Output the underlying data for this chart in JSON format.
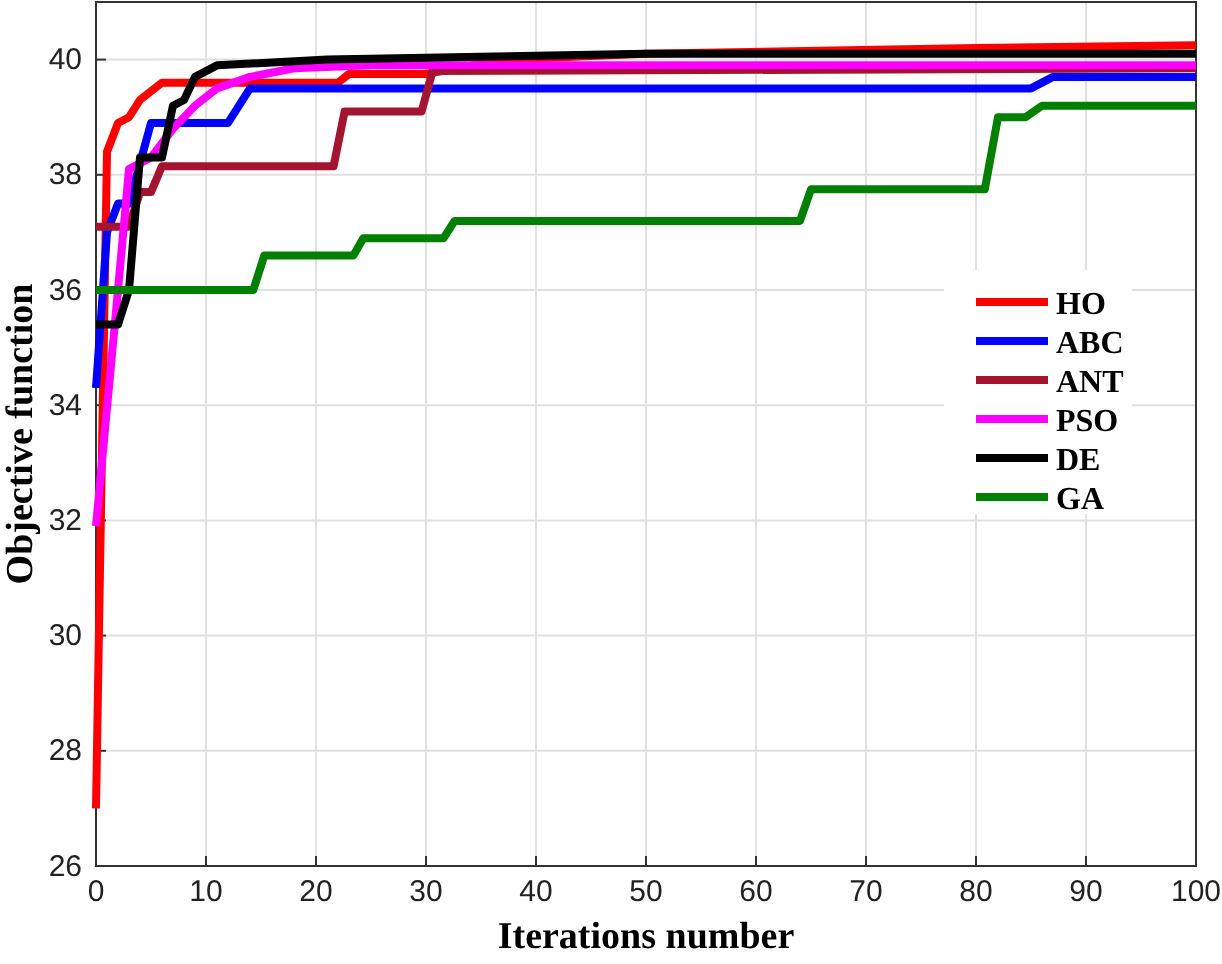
{
  "chart_data": {
    "type": "line",
    "xlabel": "Iterations number",
    "ylabel": "Objective function",
    "xlim": [
      0,
      100
    ],
    "ylim": [
      26,
      41
    ],
    "xticks": [
      0,
      10,
      20,
      30,
      40,
      50,
      60,
      70,
      80,
      90,
      100
    ],
    "yticks": [
      26,
      28,
      30,
      32,
      34,
      36,
      38,
      40
    ],
    "grid": true,
    "legend": "right",
    "marker": "none",
    "line_style": "solid",
    "series": [
      {
        "name": "HO",
        "color": "#ff0000",
        "x": [
          0,
          1,
          2,
          3,
          4,
          6,
          22,
          23,
          30,
          37,
          50,
          80,
          100
        ],
        "values": [
          27,
          38.4,
          38.9,
          39,
          39.3,
          39.6,
          39.6,
          39.75,
          39.75,
          40,
          40.1,
          40.2,
          40.25
        ]
      },
      {
        "name": "ABC",
        "color": "#0000ff",
        "x": [
          0,
          1,
          2,
          3,
          5,
          12,
          14,
          85,
          87,
          100
        ],
        "values": [
          34.3,
          37,
          37.5,
          37.5,
          38.9,
          38.9,
          39.5,
          39.5,
          39.7,
          39.7
        ]
      },
      {
        "name": "ANT",
        "color": "#a2142f",
        "x": [
          0,
          3,
          4,
          5,
          6,
          21.6,
          22.6,
          29.6,
          30.6,
          100
        ],
        "values": [
          37.1,
          37.1,
          37.7,
          37.7,
          38.15,
          38.15,
          39.1,
          39.1,
          39.8,
          39.85
        ]
      },
      {
        "name": "PSO",
        "color": "#ff00ff",
        "x": [
          0,
          2,
          3,
          5,
          7,
          9,
          11,
          14,
          18,
          25,
          100
        ],
        "values": [
          31.9,
          36,
          38.1,
          38.3,
          38.8,
          39.2,
          39.5,
          39.7,
          39.85,
          39.9,
          39.9
        ]
      },
      {
        "name": "DE",
        "color": "#000000",
        "x": [
          0,
          2,
          3,
          4,
          6,
          7,
          8,
          9,
          11,
          16,
          21,
          35,
          50,
          100
        ],
        "values": [
          35.4,
          35.4,
          36,
          38.3,
          38.3,
          39.2,
          39.3,
          39.7,
          39.9,
          39.95,
          40,
          40.05,
          40.1,
          40.1
        ]
      },
      {
        "name": "GA",
        "color": "#008000",
        "x": [
          0,
          14.3,
          15.3,
          23.4,
          24.3,
          31.6,
          32.6,
          64,
          65,
          80.8,
          82,
          84.5,
          86,
          100
        ],
        "values": [
          36,
          36,
          36.6,
          36.6,
          36.9,
          36.9,
          37.2,
          37.2,
          37.75,
          37.75,
          39,
          39,
          39.2,
          39.2
        ]
      }
    ]
  }
}
